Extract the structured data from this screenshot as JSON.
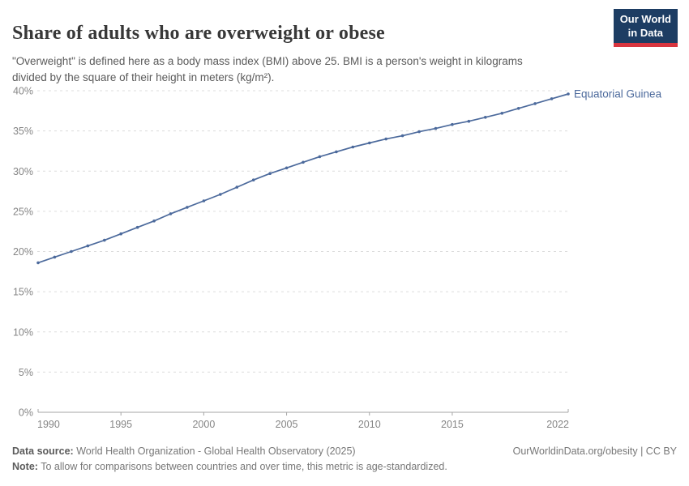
{
  "header": {
    "title": "Share of adults who are overweight or obese",
    "subtitle": "\"Overweight\" is defined here as a body mass index (BMI) above 25. BMI is a person's weight in kilograms divided by the square of their height in meters (kg/m²).",
    "logo": {
      "line1": "Our World",
      "line2": "in Data"
    }
  },
  "chart_data": {
    "type": "line",
    "title": "Share of adults who are overweight or obese",
    "x": [
      1990,
      1991,
      1992,
      1993,
      1994,
      1995,
      1996,
      1997,
      1998,
      1999,
      2000,
      2001,
      2002,
      2003,
      2004,
      2005,
      2006,
      2007,
      2008,
      2009,
      2010,
      2011,
      2012,
      2013,
      2014,
      2015,
      2016,
      2017,
      2018,
      2019,
      2020,
      2021,
      2022
    ],
    "series": [
      {
        "name": "Equatorial Guinea",
        "values": [
          18.6,
          19.3,
          20.0,
          20.7,
          21.4,
          22.2,
          23.0,
          23.8,
          24.7,
          25.5,
          26.3,
          27.1,
          28.0,
          28.9,
          29.7,
          30.4,
          31.1,
          31.8,
          32.4,
          33.0,
          33.5,
          34.0,
          34.4,
          34.9,
          35.3,
          35.8,
          36.2,
          36.7,
          37.2,
          37.8,
          38.4,
          39.0,
          39.6
        ]
      }
    ],
    "xlim": [
      1990,
      2022
    ],
    "ylim": [
      0,
      40
    ],
    "yticks": [
      0,
      5,
      10,
      15,
      20,
      25,
      30,
      35,
      40
    ],
    "ytick_suffix": "%",
    "xticks": [
      1990,
      1995,
      2000,
      2005,
      2010,
      2015,
      2022
    ],
    "grid": "dashed-horizontal",
    "legend_position": "end-of-line-label",
    "xlabel": "",
    "ylabel": ""
  },
  "footer": {
    "data_source_label": "Data source:",
    "data_source": " World Health Organization - Global Health Observatory (2025)",
    "note_label": "Note:",
    "note": " To allow for comparisons between countries and over time, this metric is age-standardized.",
    "link": "OurWorldinData.org/obesity | CC BY"
  },
  "colors": {
    "line": "#4C6A9C",
    "grid": "#dcdcdc",
    "axis": "#a5a5a5",
    "tick_text": "#858585"
  }
}
